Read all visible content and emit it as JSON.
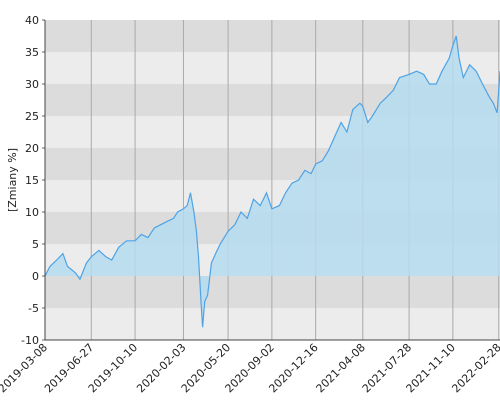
{
  "chart_data": {
    "type": "area",
    "y_label": "[Zmiany %]",
    "xlim": [
      "2019-03-08",
      "2022-03-03"
    ],
    "xticks": [
      "2019-03-08",
      "2019-06-27",
      "2019-10-10",
      "2020-02-03",
      "2020-05-20",
      "2020-09-02",
      "2020-12-16",
      "2021-04-08",
      "2021-07-28",
      "2021-11-10",
      "2022-02-28"
    ],
    "ylim": [
      -10,
      40
    ],
    "yticks": [
      -10,
      -5,
      0,
      5,
      10,
      15,
      20,
      25,
      30,
      35,
      40
    ],
    "grid": true,
    "band_colors": [
      "#dcdcdc",
      "#ececec"
    ],
    "series": [
      {
        "name": "Zmiany",
        "color": "#4ea3e6",
        "fill": "#b5dcee",
        "x": [
          "2019-03-08",
          "2019-03-20",
          "2019-04-05",
          "2019-04-20",
          "2019-05-01",
          "2019-05-20",
          "2019-05-31",
          "2019-06-15",
          "2019-06-27",
          "2019-07-15",
          "2019-08-01",
          "2019-08-15",
          "2019-09-01",
          "2019-09-20",
          "2019-10-10",
          "2019-10-25",
          "2019-11-10",
          "2019-11-25",
          "2019-12-10",
          "2019-12-25",
          "2020-01-10",
          "2020-01-20",
          "2020-02-03",
          "2020-02-12",
          "2020-02-20",
          "2020-02-28",
          "2020-03-05",
          "2020-03-10",
          "2020-03-16",
          "2020-03-20",
          "2020-03-25",
          "2020-04-01",
          "2020-04-10",
          "2020-04-20",
          "2020-05-01",
          "2020-05-20",
          "2020-06-05",
          "2020-06-20",
          "2020-07-05",
          "2020-07-20",
          "2020-08-05",
          "2020-08-20",
          "2020-09-02",
          "2020-09-20",
          "2020-10-05",
          "2020-10-20",
          "2020-11-05",
          "2020-11-20",
          "2020-12-05",
          "2020-12-16",
          "2021-01-01",
          "2021-01-15",
          "2021-02-01",
          "2021-02-15",
          "2021-03-01",
          "2021-03-15",
          "2021-04-01",
          "2021-04-08",
          "2021-04-20",
          "2021-05-01",
          "2021-05-20",
          "2021-06-05",
          "2021-06-20",
          "2021-07-05",
          "2021-07-28",
          "2021-08-15",
          "2021-09-01",
          "2021-09-15",
          "2021-10-01",
          "2021-10-15",
          "2021-11-01",
          "2021-11-10",
          "2021-11-18",
          "2021-11-25",
          "2021-12-05",
          "2021-12-20",
          "2022-01-05",
          "2022-01-20",
          "2022-02-05",
          "2022-02-15",
          "2022-02-24",
          "2022-03-01",
          "2022-03-03"
        ],
        "values": [
          0,
          1.5,
          2.5,
          3.5,
          1.5,
          0.5,
          -0.5,
          2,
          3,
          4,
          3,
          2.5,
          4.5,
          5.5,
          5.5,
          6.5,
          6,
          7.5,
          8,
          8.5,
          9,
          10,
          10.5,
          11,
          13,
          10,
          7,
          3,
          -4,
          -8,
          -4,
          -3,
          2,
          3.5,
          5,
          7,
          8,
          10,
          9,
          12,
          11,
          13,
          10.5,
          11,
          13,
          14.5,
          15,
          16.5,
          16,
          17.5,
          18,
          19.5,
          22,
          24,
          22.5,
          26,
          27,
          26.5,
          24,
          25,
          27,
          28,
          29,
          31,
          31.5,
          32,
          31.5,
          30,
          30,
          32,
          34,
          36,
          37.5,
          34,
          31,
          33,
          32,
          30,
          28,
          27,
          25.5,
          30,
          32
        ]
      }
    ]
  }
}
